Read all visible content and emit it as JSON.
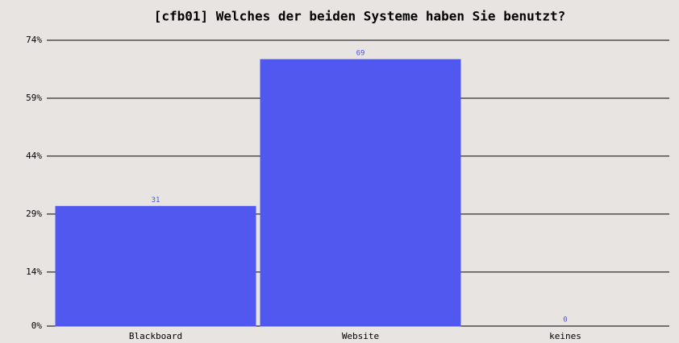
{
  "chart_data": {
    "type": "bar",
    "title": "[cfb01] Welches der beiden Systeme haben Sie benutzt?",
    "categories": [
      "Blackboard",
      "Website",
      "keines"
    ],
    "values": [
      31,
      69,
      0
    ],
    "color": "#5058f0",
    "ylim": [
      0,
      74
    ],
    "yticks": [
      {
        "value": 0,
        "label": "0%"
      },
      {
        "value": 14,
        "label": "14%"
      },
      {
        "value": 29,
        "label": "29%"
      },
      {
        "value": 44,
        "label": "44%"
      },
      {
        "value": 59,
        "label": "59%"
      },
      {
        "value": 74,
        "label": "74%"
      }
    ],
    "grid": true
  }
}
